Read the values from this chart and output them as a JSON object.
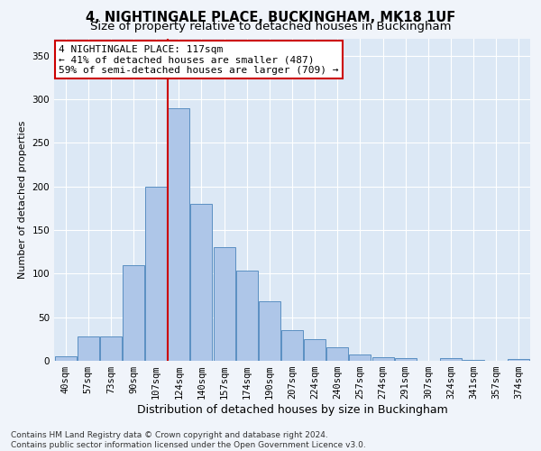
{
  "title": "4, NIGHTINGALE PLACE, BUCKINGHAM, MK18 1UF",
  "subtitle": "Size of property relative to detached houses in Buckingham",
  "xlabel": "Distribution of detached houses by size in Buckingham",
  "ylabel": "Number of detached properties",
  "categories": [
    "40sqm",
    "57sqm",
    "73sqm",
    "90sqm",
    "107sqm",
    "124sqm",
    "140sqm",
    "157sqm",
    "174sqm",
    "190sqm",
    "207sqm",
    "224sqm",
    "240sqm",
    "257sqm",
    "274sqm",
    "291sqm",
    "307sqm",
    "324sqm",
    "341sqm",
    "357sqm",
    "374sqm"
  ],
  "values": [
    5,
    28,
    28,
    110,
    200,
    290,
    180,
    130,
    103,
    68,
    35,
    25,
    16,
    7,
    4,
    3,
    0,
    3,
    1,
    0,
    2
  ],
  "bar_color": "#aec6e8",
  "bar_edgecolor": "#5a8fc2",
  "vline_color": "#cc0000",
  "vline_index": 4.5,
  "annotation_text": "4 NIGHTINGALE PLACE: 117sqm\n← 41% of detached houses are smaller (487)\n59% of semi-detached houses are larger (709) →",
  "annotation_box_facecolor": "#ffffff",
  "annotation_box_edgecolor": "#cc0000",
  "ylim": [
    0,
    370
  ],
  "yticks": [
    0,
    50,
    100,
    150,
    200,
    250,
    300,
    350
  ],
  "plot_bg_color": "#dce8f5",
  "fig_bg_color": "#f0f4fa",
  "footnote": "Contains HM Land Registry data © Crown copyright and database right 2024.\nContains public sector information licensed under the Open Government Licence v3.0.",
  "title_fontsize": 10.5,
  "subtitle_fontsize": 9.5,
  "xlabel_fontsize": 9,
  "ylabel_fontsize": 8,
  "tick_fontsize": 7.5,
  "annotation_fontsize": 8,
  "footnote_fontsize": 6.5
}
